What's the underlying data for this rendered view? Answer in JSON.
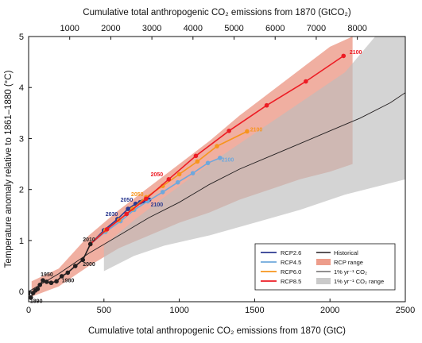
{
  "chart_data": {
    "type": "line",
    "xlabel": "Cumulative total anthropogenic CO₂ emissions from 1870 (GtC)",
    "x2label": "Cumulative total anthropogenic CO₂ emissions from 1870 (GtCO₂)",
    "ylabel": "Temperature anomaly relative to 1861–1880 (°C)",
    "xlim": [
      0,
      2500
    ],
    "ylim": [
      -0.2,
      5
    ],
    "x_ticks": [
      0,
      500,
      1000,
      1500,
      2000,
      2500
    ],
    "x2_ticks": [
      1000,
      2000,
      3000,
      4000,
      5000,
      6000,
      7000,
      8000
    ],
    "y_ticks": [
      0,
      1,
      2,
      3,
      4,
      5
    ],
    "series": [
      {
        "name": "RCP2.6",
        "color": "#2b3990",
        "points": [
          [
            410,
            0.93
          ],
          [
            500,
            1.2
          ],
          [
            590,
            1.42
          ],
          [
            660,
            1.62
          ],
          [
            710,
            1.72
          ],
          [
            740,
            1.75
          ],
          [
            760,
            1.77
          ],
          [
            780,
            1.79
          ],
          [
            790,
            1.8
          ],
          [
            800,
            1.8
          ]
        ]
      },
      {
        "name": "RCP4.5",
        "color": "#6fa8dc",
        "points": [
          [
            410,
            0.93
          ],
          [
            510,
            1.17
          ],
          [
            610,
            1.38
          ],
          [
            700,
            1.6
          ],
          [
            790,
            1.77
          ],
          [
            890,
            1.95
          ],
          [
            990,
            2.14
          ],
          [
            1090,
            2.32
          ],
          [
            1190,
            2.52
          ],
          [
            1270,
            2.62
          ]
        ]
      },
      {
        "name": "RCP6.0",
        "color": "#f7941d",
        "points": [
          [
            410,
            0.93
          ],
          [
            510,
            1.2
          ],
          [
            600,
            1.4
          ],
          [
            690,
            1.62
          ],
          [
            780,
            1.85
          ],
          [
            890,
            2.07
          ],
          [
            1000,
            2.3
          ],
          [
            1120,
            2.55
          ],
          [
            1250,
            2.85
          ],
          [
            1450,
            3.14
          ]
        ]
      },
      {
        "name": "RCP8.5",
        "color": "#ed1c24",
        "points": [
          [
            410,
            0.93
          ],
          [
            520,
            1.22
          ],
          [
            650,
            1.52
          ],
          [
            780,
            1.82
          ],
          [
            930,
            2.2
          ],
          [
            1110,
            2.66
          ],
          [
            1330,
            3.15
          ],
          [
            1580,
            3.65
          ],
          [
            1840,
            4.12
          ],
          [
            2090,
            4.62
          ]
        ]
      },
      {
        "name": "Historical",
        "color": "#231f20",
        "points": [
          [
            0,
            -0.02
          ],
          [
            15,
            -0.12
          ],
          [
            30,
            -0.03
          ],
          [
            45,
            0.02
          ],
          [
            60,
            0.05
          ],
          [
            75,
            0.13
          ],
          [
            95,
            0.22
          ],
          [
            120,
            0.19
          ],
          [
            150,
            0.17
          ],
          [
            185,
            0.2
          ],
          [
            220,
            0.3
          ],
          [
            260,
            0.37
          ],
          [
            310,
            0.5
          ],
          [
            360,
            0.62
          ],
          [
            410,
            0.93
          ]
        ]
      },
      {
        "name": "1% yr⁻¹ CO₂",
        "color": "#231f20",
        "points": [
          [
            0,
            0
          ],
          [
            200,
            0.35
          ],
          [
            400,
            0.75
          ],
          [
            600,
            1.1
          ],
          [
            800,
            1.45
          ],
          [
            1000,
            1.75
          ],
          [
            1200,
            2.1
          ],
          [
            1400,
            2.4
          ],
          [
            1600,
            2.65
          ],
          [
            1800,
            2.9
          ],
          [
            2000,
            3.15
          ],
          [
            2200,
            3.4
          ],
          [
            2400,
            3.7
          ],
          [
            2500,
            3.9
          ]
        ]
      }
    ],
    "ranges": [
      {
        "name": "RCP range",
        "color": "#e8846e",
        "lower": [
          [
            20,
            -0.1
          ],
          [
            200,
            0.1
          ],
          [
            400,
            0.5
          ],
          [
            600,
            0.85
          ],
          [
            800,
            1.1
          ],
          [
            1000,
            1.35
          ],
          [
            1200,
            1.55
          ],
          [
            1400,
            1.8
          ],
          [
            1600,
            2.0
          ],
          [
            1800,
            2.2
          ],
          [
            2000,
            2.35
          ],
          [
            2150,
            2.5
          ]
        ],
        "upper": [
          [
            20,
            0.2
          ],
          [
            200,
            0.45
          ],
          [
            400,
            1.1
          ],
          [
            600,
            1.6
          ],
          [
            800,
            2.05
          ],
          [
            1000,
            2.5
          ],
          [
            1200,
            2.95
          ],
          [
            1400,
            3.45
          ],
          [
            1600,
            3.9
          ],
          [
            1800,
            4.35
          ],
          [
            2000,
            4.8
          ],
          [
            2150,
            5.0
          ]
        ]
      },
      {
        "name": "1% yr⁻¹ CO₂ range",
        "color": "#bdbdbd",
        "lower": [
          [
            500,
            0.4
          ],
          [
            700,
            0.7
          ],
          [
            900,
            0.9
          ],
          [
            1200,
            1.1
          ],
          [
            1500,
            1.35
          ],
          [
            1800,
            1.6
          ],
          [
            2100,
            1.9
          ],
          [
            2500,
            2.2
          ]
        ],
        "upper": [
          [
            500,
            0.9
          ],
          [
            700,
            1.4
          ],
          [
            900,
            1.85
          ],
          [
            1200,
            2.5
          ],
          [
            1500,
            3.1
          ],
          [
            1800,
            3.7
          ],
          [
            2100,
            4.3
          ],
          [
            2300,
            5.0
          ],
          [
            2500,
            5.0
          ]
        ]
      }
    ],
    "annotations": [
      {
        "text": "1890",
        "x": 10,
        "y": -0.22,
        "color": "#231f20"
      },
      {
        "text": "1950",
        "x": 80,
        "y": 0.3,
        "color": "#231f20"
      },
      {
        "text": "1980",
        "x": 220,
        "y": 0.18,
        "color": "#231f20"
      },
      {
        "text": "2000",
        "x": 360,
        "y": 0.5,
        "color": "#231f20"
      },
      {
        "text": "2010",
        "x": 360,
        "y": 0.98,
        "color": "#231f20"
      },
      {
        "text": "2030",
        "x": 510,
        "y": 1.48,
        "color": "#2b3990"
      },
      {
        "text": "2050",
        "x": 610,
        "y": 1.76,
        "color": "#2b3990"
      },
      {
        "text": "2050",
        "x": 680,
        "y": 1.87,
        "color": "#f7941d"
      },
      {
        "text": "2050",
        "x": 810,
        "y": 2.26,
        "color": "#ed1c24"
      },
      {
        "text": "2100",
        "x": 2130,
        "y": 4.66,
        "color": "#ed1c24"
      },
      {
        "text": "2100",
        "x": 1470,
        "y": 3.14,
        "color": "#f7941d"
      },
      {
        "text": "2100",
        "x": 1280,
        "y": 2.55,
        "color": "#6fa8dc"
      },
      {
        "text": "2100",
        "x": 810,
        "y": 1.67,
        "color": "#2b3990"
      }
    ],
    "legend_position": "bottom-right",
    "grid": false
  }
}
